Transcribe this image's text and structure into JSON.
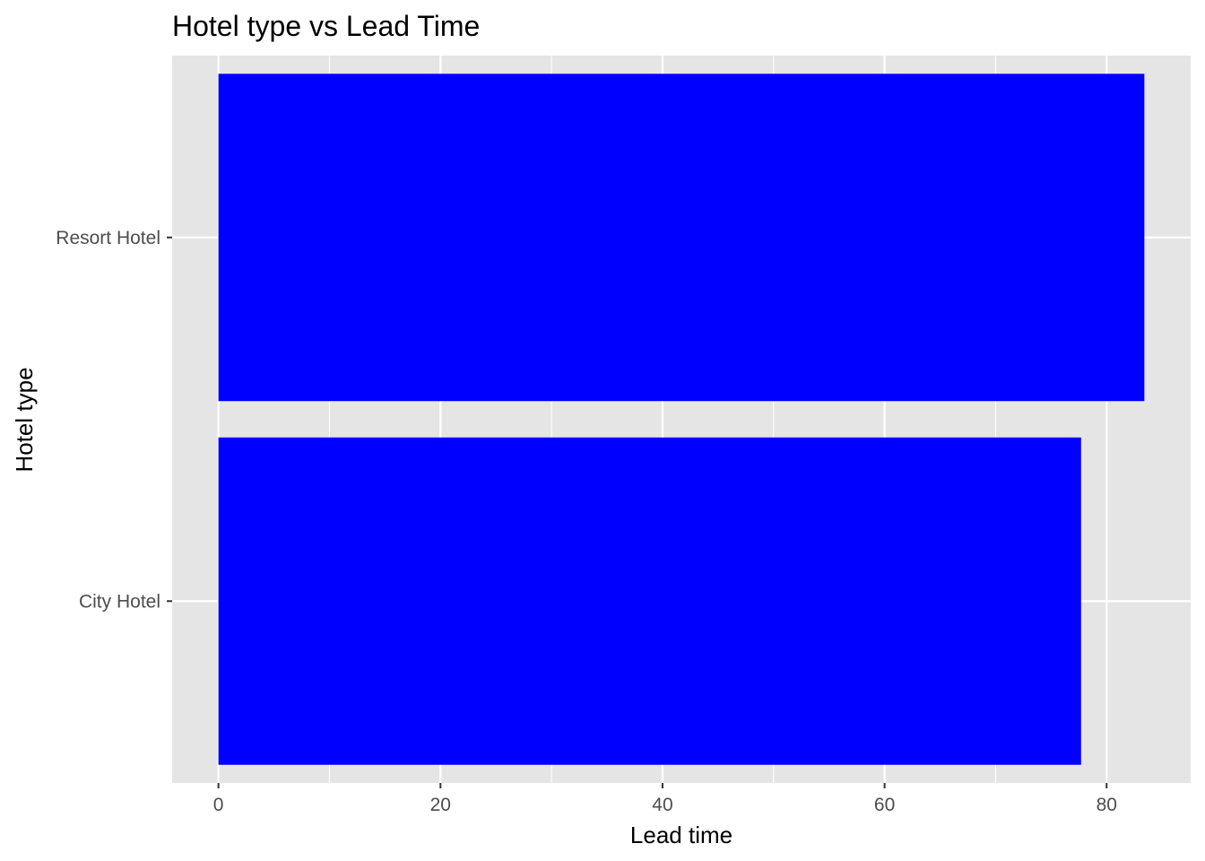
{
  "chart_data": {
    "type": "bar",
    "orientation": "horizontal",
    "title": "Hotel type vs Lead Time",
    "xlabel": "Lead time",
    "ylabel": "Hotel type",
    "categories": [
      "City Hotel",
      "Resort Hotel"
    ],
    "values": [
      77.7,
      83.4
    ],
    "xlim": [
      -4.17,
      87.57
    ],
    "xticks": [
      0,
      20,
      40,
      60,
      80
    ],
    "xtick_labels": [
      "0",
      "20",
      "40",
      "60",
      "80"
    ],
    "grid": true,
    "legend": "none",
    "colors": {
      "bar": "#0000ff",
      "panel": "#e5e5e5",
      "gridline": "#ffffff",
      "tick": "#333333"
    }
  }
}
